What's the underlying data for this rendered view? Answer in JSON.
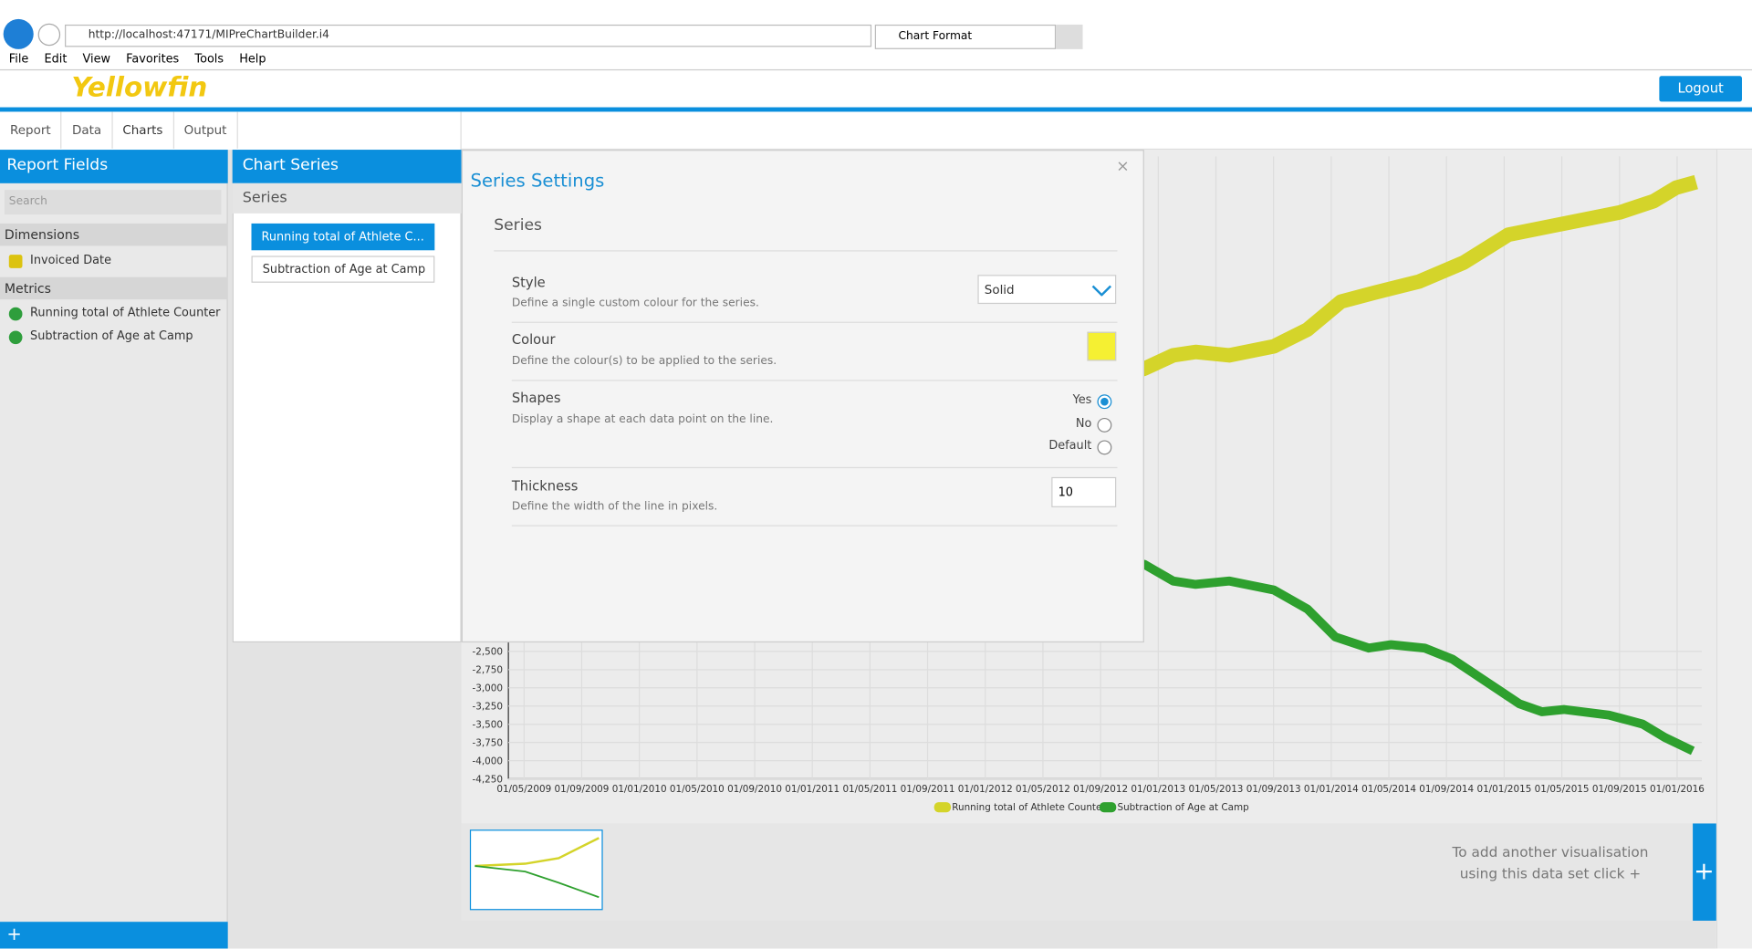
{
  "browser": {
    "url": "http://localhost:47171/MIPreChartBuilder.i4",
    "tab": "Chart Format",
    "menu": [
      "File",
      "Edit",
      "View",
      "Favorites",
      "Tools",
      "Help"
    ]
  },
  "app": {
    "logo": "Yellowfin",
    "logout": "Logout",
    "tabs": [
      "Report",
      "Data",
      "Charts",
      "Output"
    ]
  },
  "report_fields": {
    "title": "Report Fields",
    "search": "Search",
    "dimensions": "Dimensions",
    "dimension_items": [
      "Invoiced Date"
    ],
    "metrics": "Metrics",
    "metric_items": [
      "Running total of Athlete Counter",
      "Subtraction of Age at Camp"
    ]
  },
  "chart_series": {
    "title": "Chart Series",
    "heading": "Series",
    "items": [
      "Running total of Athlete C...",
      "Subtraction of Age at Camp"
    ]
  },
  "modal": {
    "title": "Series Settings",
    "section": "Series",
    "style": {
      "label": "Style",
      "desc": "Define a single custom colour for the series.",
      "value": "Solid"
    },
    "colour": {
      "label": "Colour",
      "desc": "Define the colour(s) to be applied to the series."
    },
    "shapes": {
      "label": "Shapes",
      "desc": "Display a shape at each data point on the line.",
      "options": [
        "Yes",
        "No",
        "Default"
      ]
    },
    "thickness": {
      "label": "Thickness",
      "desc": "Define the width of the line in pixels.",
      "value": "10"
    }
  },
  "chart": {
    "yticks": [
      "-2,500",
      "-2,750",
      "-3,000",
      "-3,250",
      "-3,500",
      "-3,750",
      "-4,000",
      "-4,250"
    ],
    "xticks": [
      "01/05/2009",
      "01/09/2009",
      "01/01/2010",
      "01/05/2010",
      "01/09/2010",
      "01/01/2011",
      "01/05/2011",
      "01/09/2011",
      "01/01/2012",
      "01/05/2012",
      "01/09/2012",
      "01/01/2013",
      "01/05/2013",
      "01/09/2013",
      "01/01/2014",
      "01/05/2014",
      "01/09/2014",
      "01/01/2015",
      "01/05/2015",
      "01/09/2015",
      "01/01/2016"
    ],
    "legend": [
      "Running total of Athlete Counter",
      "Subtraction of Age at Camp"
    ]
  },
  "hint": [
    "To add another visualisation",
    "using this data set click +"
  ]
}
